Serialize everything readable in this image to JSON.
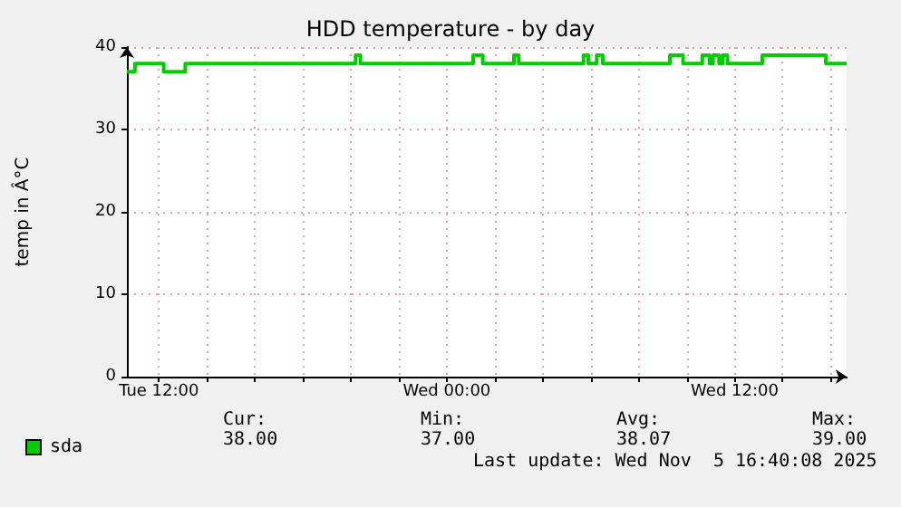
{
  "chart_data": {
    "type": "step",
    "title": "HDD temperature - by day",
    "ylabel": "temp in Â°C",
    "series": [
      {
        "name": "sda",
        "color": "#00cc00",
        "x": [
          "2025-11-04T10:40",
          "2025-11-04T11:00",
          "2025-11-04T12:12",
          "2025-11-04T13:06",
          "2025-11-04T20:12",
          "2025-11-04T20:24",
          "2025-11-05T01:06",
          "2025-11-05T01:30",
          "2025-11-05T02:48",
          "2025-11-05T03:00",
          "2025-11-05T05:42",
          "2025-11-05T05:54",
          "2025-11-05T06:15",
          "2025-11-05T06:30",
          "2025-11-05T09:18",
          "2025-11-05T09:51",
          "2025-11-05T10:39",
          "2025-11-05T10:57",
          "2025-11-05T11:06",
          "2025-11-05T11:21",
          "2025-11-05T11:30",
          "2025-11-05T11:42",
          "2025-11-05T13:09",
          "2025-11-05T15:48",
          "2025-11-05T16:40"
        ],
        "values": [
          37,
          38,
          37,
          38,
          39,
          38,
          39,
          38,
          39,
          38,
          39,
          38,
          39,
          38,
          39,
          38,
          39,
          38,
          39,
          38,
          39,
          38,
          39,
          38,
          38
        ]
      }
    ],
    "xlim": [
      "2025-11-04T10:40",
      "2025-11-05T16:40"
    ],
    "xticks": [
      {
        "value": "2025-11-04T12:00",
        "label": "Tue 12:00"
      },
      {
        "value": "2025-11-04T14:00",
        "label": null
      },
      {
        "value": "2025-11-04T16:00",
        "label": null
      },
      {
        "value": "2025-11-04T18:00",
        "label": null
      },
      {
        "value": "2025-11-04T20:00",
        "label": null
      },
      {
        "value": "2025-11-04T22:00",
        "label": null
      },
      {
        "value": "2025-11-05T00:00",
        "label": "Wed 00:00"
      },
      {
        "value": "2025-11-05T02:00",
        "label": null
      },
      {
        "value": "2025-11-05T04:00",
        "label": null
      },
      {
        "value": "2025-11-05T06:00",
        "label": null
      },
      {
        "value": "2025-11-05T08:00",
        "label": null
      },
      {
        "value": "2025-11-05T10:00",
        "label": null
      },
      {
        "value": "2025-11-05T12:00",
        "label": "Wed 12:00"
      },
      {
        "value": "2025-11-05T14:00",
        "label": null
      },
      {
        "value": "2025-11-05T16:00",
        "label": null
      }
    ],
    "ylim": [
      0,
      40
    ],
    "yticks": [
      0,
      10,
      20,
      30,
      40
    ],
    "grid": true,
    "legend": "bottom left",
    "marker": "none",
    "line_style": "solid",
    "annotations": [
      "Cur:",
      "Min:",
      "Avg:",
      "Max:",
      "38.00",
      "37.00",
      "38.07",
      "39.00",
      "Last update: Wed Nov  5 16:40:08 2025"
    ]
  }
}
